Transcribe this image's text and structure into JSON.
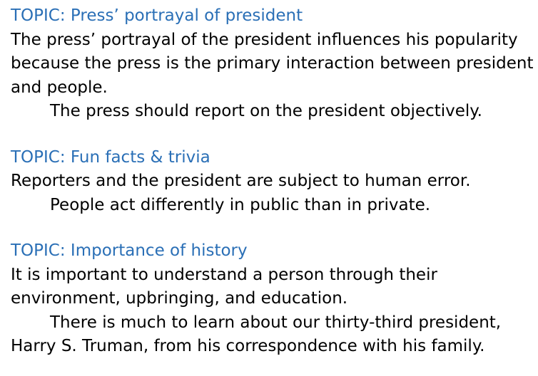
{
  "colors": {
    "topic": "#2a6fb6",
    "text": "#000000",
    "background": "#ffffff"
  },
  "sections": [
    {
      "topic": "TOPIC: Press’ portrayal of president",
      "lines": [
        "The press’ portrayal of the president influences his popularity",
        "because the press is the primary interaction between president",
        "and people.",
        "The press should report on the president objectively."
      ]
    },
    {
      "topic": "TOPIC: Fun facts & trivia",
      "lines": [
        "Reporters and the president are subject to human error.",
        "People act differently in public than in private."
      ]
    },
    {
      "topic": "TOPIC: Importance of history",
      "lines": [
        "It is important to understand a person through their",
        "environment, upbringing, and education.",
        "There is much to learn about our thirty-third president,",
        "Harry S. Truman, from his correspondence with his family."
      ]
    }
  ]
}
